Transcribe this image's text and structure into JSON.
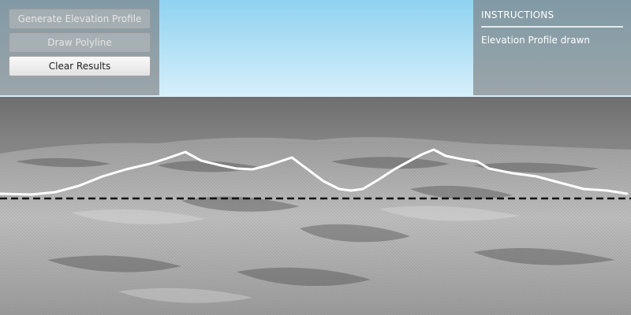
{
  "toolbar": {
    "generate_label": "Generate Elevation Profile",
    "draw_label": "Draw Polyline",
    "clear_label": "Clear Results"
  },
  "instructions": {
    "title": "INSTRUCTIONS",
    "message": "Elevation Profile drawn"
  },
  "colors": {
    "sky": "#9fd8f0",
    "terrain": "#8a8a8a",
    "profile_line": "#ffffff",
    "baseline": "#111111"
  }
}
